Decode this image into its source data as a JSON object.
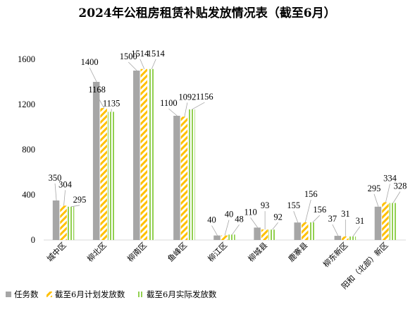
{
  "chart_data": {
    "type": "bar",
    "title": "2024年公租房租赁补贴发放情况表（截至6月）",
    "categories": [
      "城中区",
      "柳北区",
      "柳南区",
      "鱼峰区",
      "柳江区",
      "柳城县",
      "鹿寨县",
      "柳东新区",
      "阳和（北部）新区"
    ],
    "series": [
      {
        "name": "任务数",
        "values": [
          350,
          1400,
          1500,
          1100,
          40,
          110,
          155,
          37,
          295
        ]
      },
      {
        "name": "截至6月计划发放数",
        "values": [
          304,
          1168,
          1514,
          1092,
          40,
          93,
          156,
          31,
          334
        ]
      },
      {
        "name": "截至6月实际发放数",
        "values": [
          295,
          1135,
          1514,
          1156,
          48,
          92,
          156,
          31,
          328
        ]
      }
    ],
    "ylim": [
      0,
      1800
    ],
    "yticks": [
      0,
      400,
      800,
      1200,
      1600
    ],
    "xlabel": "",
    "ylabel": "",
    "grid": false,
    "legend_position": "bottom-left",
    "colors": [
      "#a6a6a6",
      "#ffc000",
      "#92d050"
    ]
  }
}
